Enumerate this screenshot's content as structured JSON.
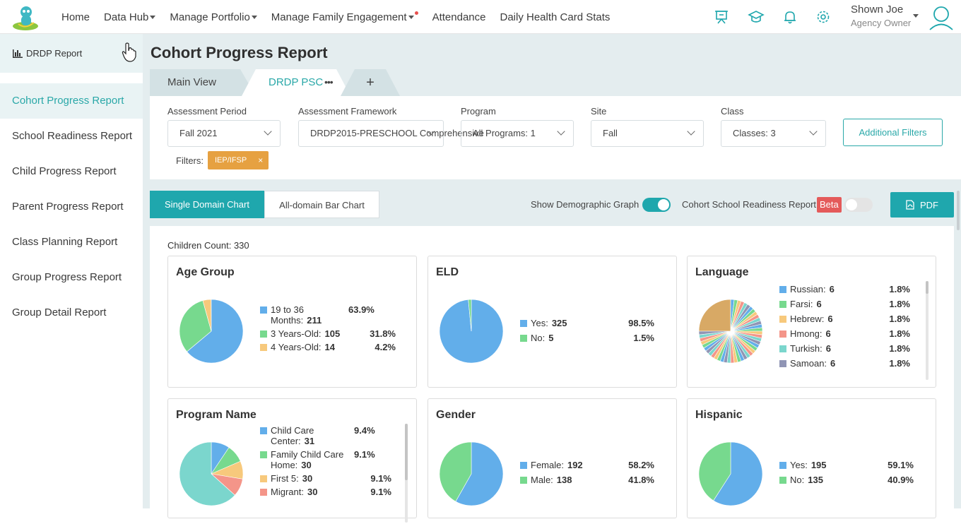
{
  "nav": {
    "items": [
      {
        "label": "Home",
        "caret": false,
        "dot": false
      },
      {
        "label": "Data Hub",
        "caret": true,
        "dot": false
      },
      {
        "label": "Manage Portfolio",
        "caret": true,
        "dot": false
      },
      {
        "label": "Manage Family Engagement",
        "caret": true,
        "dot": true
      },
      {
        "label": "Attendance",
        "caret": false,
        "dot": false
      },
      {
        "label": "Daily Health Card Stats",
        "caret": false,
        "dot": false
      }
    ],
    "icons": [
      "presentation-board-icon",
      "graduation-cap-icon",
      "bell-icon",
      "gear-icon"
    ],
    "user_name": "Shown Joe",
    "user_role": "Agency Owner"
  },
  "sidebar": {
    "header": "DRDP Report",
    "items": [
      {
        "label": "Cohort Progress Report",
        "active": true
      },
      {
        "label": "School Readiness Report",
        "active": false
      },
      {
        "label": "Child Progress Report",
        "active": false
      },
      {
        "label": "Parent Progress Report",
        "active": false
      },
      {
        "label": "Class Planning Report",
        "active": false
      },
      {
        "label": "Group Progress Report",
        "active": false
      },
      {
        "label": "Group Detail Report",
        "active": false
      }
    ]
  },
  "page": {
    "title": "Cohort Progress Report",
    "tabs": {
      "main": "Main View",
      "active": "DRDP PSC",
      "more": "•••",
      "add": "+"
    }
  },
  "filters": {
    "assessment_period": {
      "label": "Assessment Period",
      "value": "Fall 2021"
    },
    "framework": {
      "label": "Assessment Framework",
      "value": "DRDP2015-PRESCHOOL Comprehensive"
    },
    "program": {
      "label": "Program",
      "value": "All Programs: 1"
    },
    "site": {
      "label": "Site",
      "value": "Fall"
    },
    "class": {
      "label": "Class",
      "value": "Classes: 3"
    },
    "additional_filters": "Additional Filters",
    "filters_label": "Filters:",
    "chip": "IEP/IFSP",
    "chip_close": "×"
  },
  "toolbar": {
    "single_domain": "Single Domain Chart",
    "all_domain": "All-domain Bar Chart",
    "show_demographic": "Show Demographic Graph",
    "show_demographic_on": true,
    "cohort_readiness": "Cohort School Readiness Report",
    "cohort_readiness_on": false,
    "beta": "Beta",
    "pdf": "PDF"
  },
  "content": {
    "children_count": "Children Count: 330"
  },
  "colors": {
    "blue": "#62aeea",
    "green": "#77d98e",
    "orange": "#f7c97c",
    "salmon": "#f49589",
    "teal": "#7bd6cd",
    "purple": "#9095b5",
    "tan": "#d8a965",
    "accent": "#1fa7ad"
  },
  "cards": {
    "age": {
      "title": "Age Group",
      "items": [
        {
          "label": "19 to 36 Months:",
          "value": "211",
          "pct": "63.9%",
          "frac": 0.639,
          "color": "#62aeea"
        },
        {
          "label": "3 Years-Old:",
          "value": "105",
          "pct": "31.8%",
          "frac": 0.318,
          "color": "#77d98e"
        },
        {
          "label": "4 Years-Old:",
          "value": "14",
          "pct": "4.2%",
          "frac": 0.042,
          "color": "#f7c97c"
        }
      ]
    },
    "eld": {
      "title": "ELD",
      "items": [
        {
          "label": "Yes:",
          "value": "325",
          "pct": "98.5%",
          "frac": 0.985,
          "color": "#62aeea"
        },
        {
          "label": "No:",
          "value": "5",
          "pct": "1.5%",
          "frac": 0.015,
          "color": "#77d98e"
        }
      ]
    },
    "language": {
      "title": "Language",
      "items": [
        {
          "label": "Russian:",
          "value": "6",
          "pct": "1.8%",
          "color": "#62aeea"
        },
        {
          "label": "Farsi:",
          "value": "6",
          "pct": "1.8%",
          "color": "#77d98e"
        },
        {
          "label": "Hebrew:",
          "value": "6",
          "pct": "1.8%",
          "color": "#f7c97c"
        },
        {
          "label": "Hmong:",
          "value": "6",
          "pct": "1.8%",
          "color": "#f49589"
        },
        {
          "label": "Turkish:",
          "value": "6",
          "pct": "1.8%",
          "color": "#7bd6cd"
        },
        {
          "label": "Samoan:",
          "value": "6",
          "pct": "1.8%",
          "color": "#9095b5"
        }
      ]
    },
    "program": {
      "title": "Program Name",
      "items": [
        {
          "label": "Child Care Center:",
          "value": "31",
          "pct": "9.4%",
          "frac": 0.094,
          "color": "#62aeea"
        },
        {
          "label": "Family Child Care Home:",
          "value": "30",
          "pct": "9.1%",
          "frac": 0.091,
          "color": "#77d98e"
        },
        {
          "label": "First 5:",
          "value": "30",
          "pct": "9.1%",
          "frac": 0.091,
          "color": "#f7c97c"
        },
        {
          "label": "Migrant:",
          "value": "30",
          "pct": "9.1%",
          "frac": 0.091,
          "color": "#f49589"
        }
      ],
      "rest_frac": 0.633,
      "rest_color": "#7bd6cd"
    },
    "gender": {
      "title": "Gender",
      "items": [
        {
          "label": "Female:",
          "value": "192",
          "pct": "58.2%",
          "frac": 0.582,
          "color": "#62aeea"
        },
        {
          "label": "Male:",
          "value": "138",
          "pct": "41.8%",
          "frac": 0.418,
          "color": "#77d98e"
        }
      ]
    },
    "hispanic": {
      "title": "Hispanic",
      "items": [
        {
          "label": "Yes:",
          "value": "195",
          "pct": "59.1%",
          "frac": 0.591,
          "color": "#62aeea"
        },
        {
          "label": "No:",
          "value": "135",
          "pct": "40.9%",
          "frac": 0.409,
          "color": "#77d98e"
        }
      ]
    }
  }
}
